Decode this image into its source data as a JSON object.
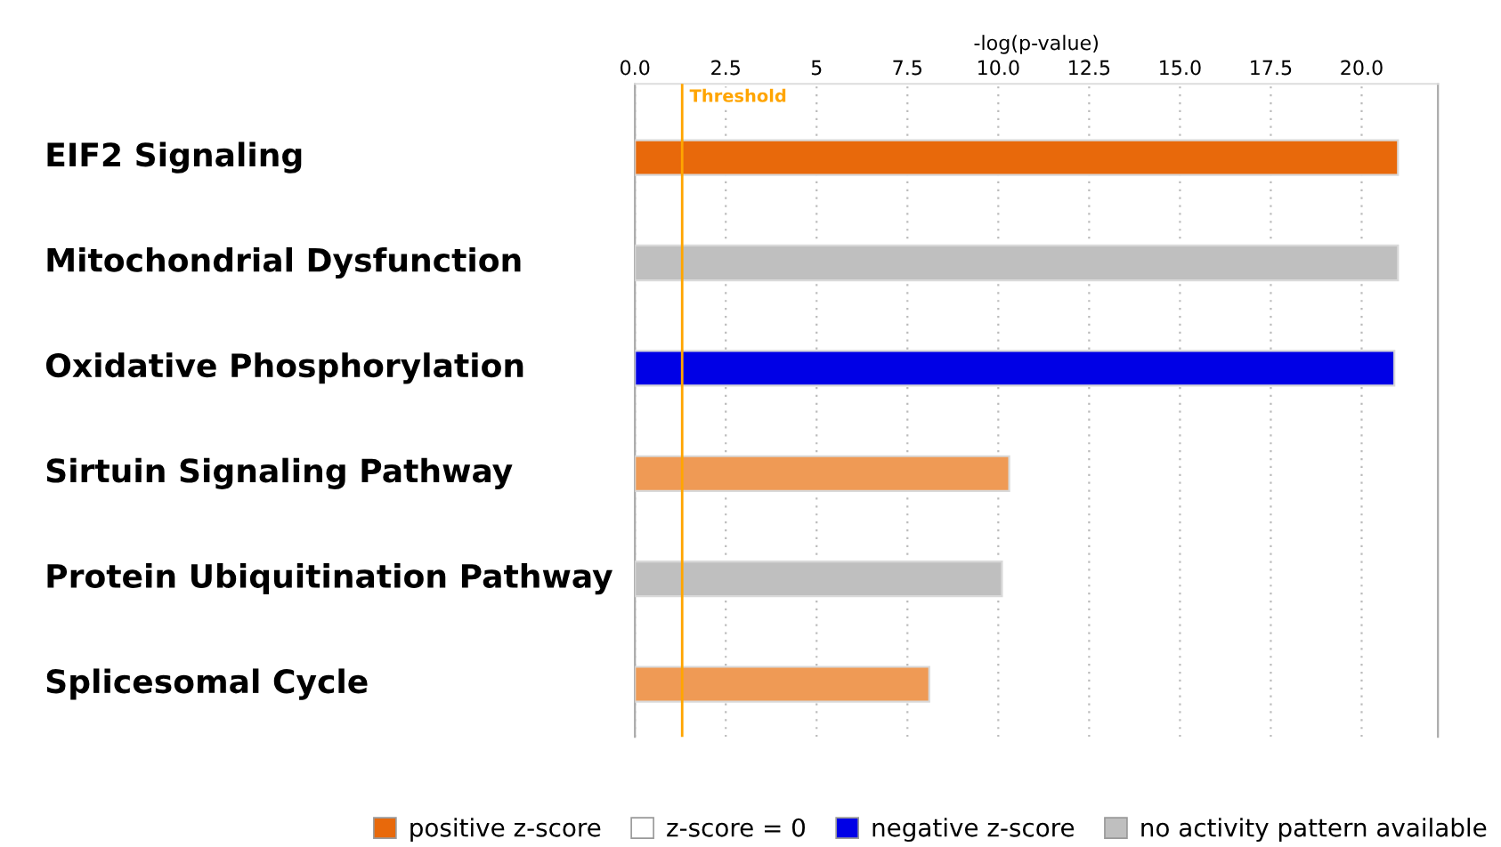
{
  "chart_data": {
    "type": "bar",
    "orientation": "horizontal",
    "xlabel": "-log(p-value)",
    "categories": [
      "EIF2 Signaling",
      "Mitochondrial Dysfunction",
      "Oxidative Phosphorylation",
      "Sirtuin Signaling Pathway",
      "Protein Ubiquitination Pathway",
      "Splicesomal Cycle"
    ],
    "series": [
      {
        "name": "positive z-score",
        "color": "#e8690b",
        "colors": [
          "#e8690b",
          null,
          null,
          "#ef9a55",
          null,
          "#ef9a55"
        ],
        "values": [
          21.0,
          null,
          null,
          10.3,
          null,
          8.1
        ]
      },
      {
        "name": "z-score = 0",
        "color": "#ffffff",
        "values": [
          null,
          null,
          null,
          null,
          null,
          null
        ]
      },
      {
        "name": "negative z-score",
        "color": "#0000e6",
        "values": [
          null,
          null,
          20.9,
          null,
          null,
          null
        ]
      },
      {
        "name": "no activity pattern available",
        "color": "#bfbfbf",
        "values": [
          null,
          21.0,
          null,
          null,
          10.1,
          null
        ]
      }
    ],
    "xlim": [
      0,
      22.1
    ],
    "xticks": [
      {
        "value": 0,
        "label": "0.0"
      },
      2.5,
      5,
      7.5,
      {
        "value": 10,
        "label": "10.0"
      },
      12.5,
      {
        "value": 15,
        "label": "15.0"
      },
      17.5,
      {
        "value": 20,
        "label": "20.0"
      }
    ],
    "ref_lines": [
      {
        "axis": "x",
        "value": 1.3,
        "label": "Threshold",
        "color": "#ffa500"
      }
    ],
    "grid": "x",
    "legend": "bottom"
  }
}
